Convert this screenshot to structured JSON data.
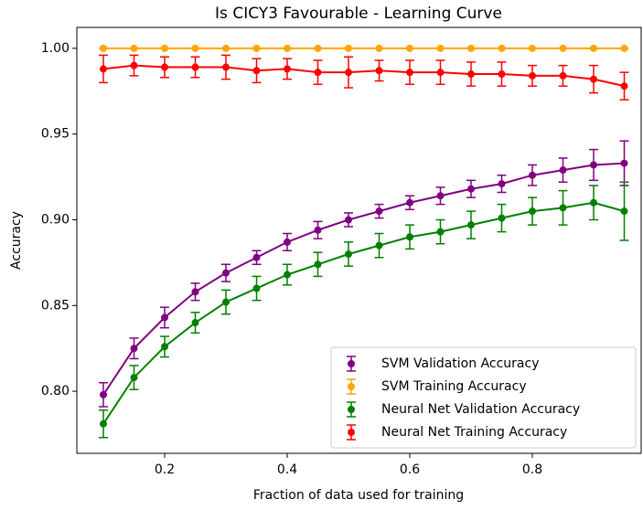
{
  "chart_data": {
    "type": "errorbar_line",
    "title": "Is CICY3 Favourable - Learning Curve",
    "x_label": "Fraction of data used for training",
    "y_label": "Accuracy",
    "x": [
      0.1,
      0.15,
      0.2,
      0.25,
      0.3,
      0.35,
      0.4,
      0.45,
      0.5,
      0.55,
      0.6,
      0.65,
      0.7,
      0.75,
      0.8,
      0.85,
      0.9,
      0.95
    ],
    "series": [
      {
        "name": "SVM Validation Accuracy",
        "color": "#800080",
        "values": [
          0.798,
          0.825,
          0.843,
          0.858,
          0.869,
          0.878,
          0.887,
          0.894,
          0.9,
          0.905,
          0.91,
          0.914,
          0.918,
          0.921,
          0.926,
          0.929,
          0.932,
          0.933
        ],
        "errors": [
          0.007,
          0.006,
          0.006,
          0.005,
          0.005,
          0.004,
          0.005,
          0.005,
          0.004,
          0.004,
          0.004,
          0.005,
          0.005,
          0.005,
          0.006,
          0.007,
          0.009,
          0.013
        ]
      },
      {
        "name": "SVM Training Accuracy",
        "color": "#ffa500",
        "values": [
          1.0,
          1.0,
          1.0,
          1.0,
          1.0,
          1.0,
          1.0,
          1.0,
          1.0,
          1.0,
          1.0,
          1.0,
          1.0,
          1.0,
          1.0,
          1.0,
          1.0,
          1.0
        ],
        "errors": [
          0,
          0,
          0,
          0,
          0,
          0,
          0,
          0,
          0,
          0,
          0,
          0,
          0,
          0,
          0,
          0,
          0,
          0
        ]
      },
      {
        "name": "Neural Net Validation Accuracy",
        "color": "#008000",
        "values": [
          0.781,
          0.808,
          0.826,
          0.84,
          0.852,
          0.86,
          0.868,
          0.874,
          0.88,
          0.885,
          0.89,
          0.893,
          0.897,
          0.901,
          0.905,
          0.907,
          0.91,
          0.905
        ],
        "errors": [
          0.008,
          0.007,
          0.006,
          0.006,
          0.007,
          0.007,
          0.006,
          0.007,
          0.007,
          0.007,
          0.007,
          0.007,
          0.008,
          0.008,
          0.008,
          0.01,
          0.01,
          0.017
        ]
      },
      {
        "name": "Neural Net Training Accuracy",
        "color": "#ff0000",
        "values": [
          0.988,
          0.99,
          0.989,
          0.989,
          0.989,
          0.987,
          0.988,
          0.986,
          0.986,
          0.987,
          0.986,
          0.986,
          0.985,
          0.985,
          0.984,
          0.984,
          0.982,
          0.978
        ],
        "errors": [
          0.008,
          0.006,
          0.006,
          0.006,
          0.007,
          0.007,
          0.006,
          0.007,
          0.009,
          0.006,
          0.007,
          0.007,
          0.007,
          0.007,
          0.006,
          0.006,
          0.008,
          0.008
        ]
      }
    ],
    "xlim": [
      0.0567,
      0.9776
    ],
    "ylim": [
      0.7638,
      1.0122
    ],
    "xticks": [
      0.2,
      0.4,
      0.6,
      0.8
    ],
    "yticks": [
      {
        "value": 0.8,
        "label": "0.80"
      },
      {
        "value": 0.85,
        "label": "0.85"
      },
      {
        "value": 0.9,
        "label": "0.90"
      },
      {
        "value": 0.95,
        "label": "0.95"
      },
      {
        "value": 1.0,
        "label": "1.00"
      }
    ],
    "legend": "lower right",
    "grid": false
  }
}
